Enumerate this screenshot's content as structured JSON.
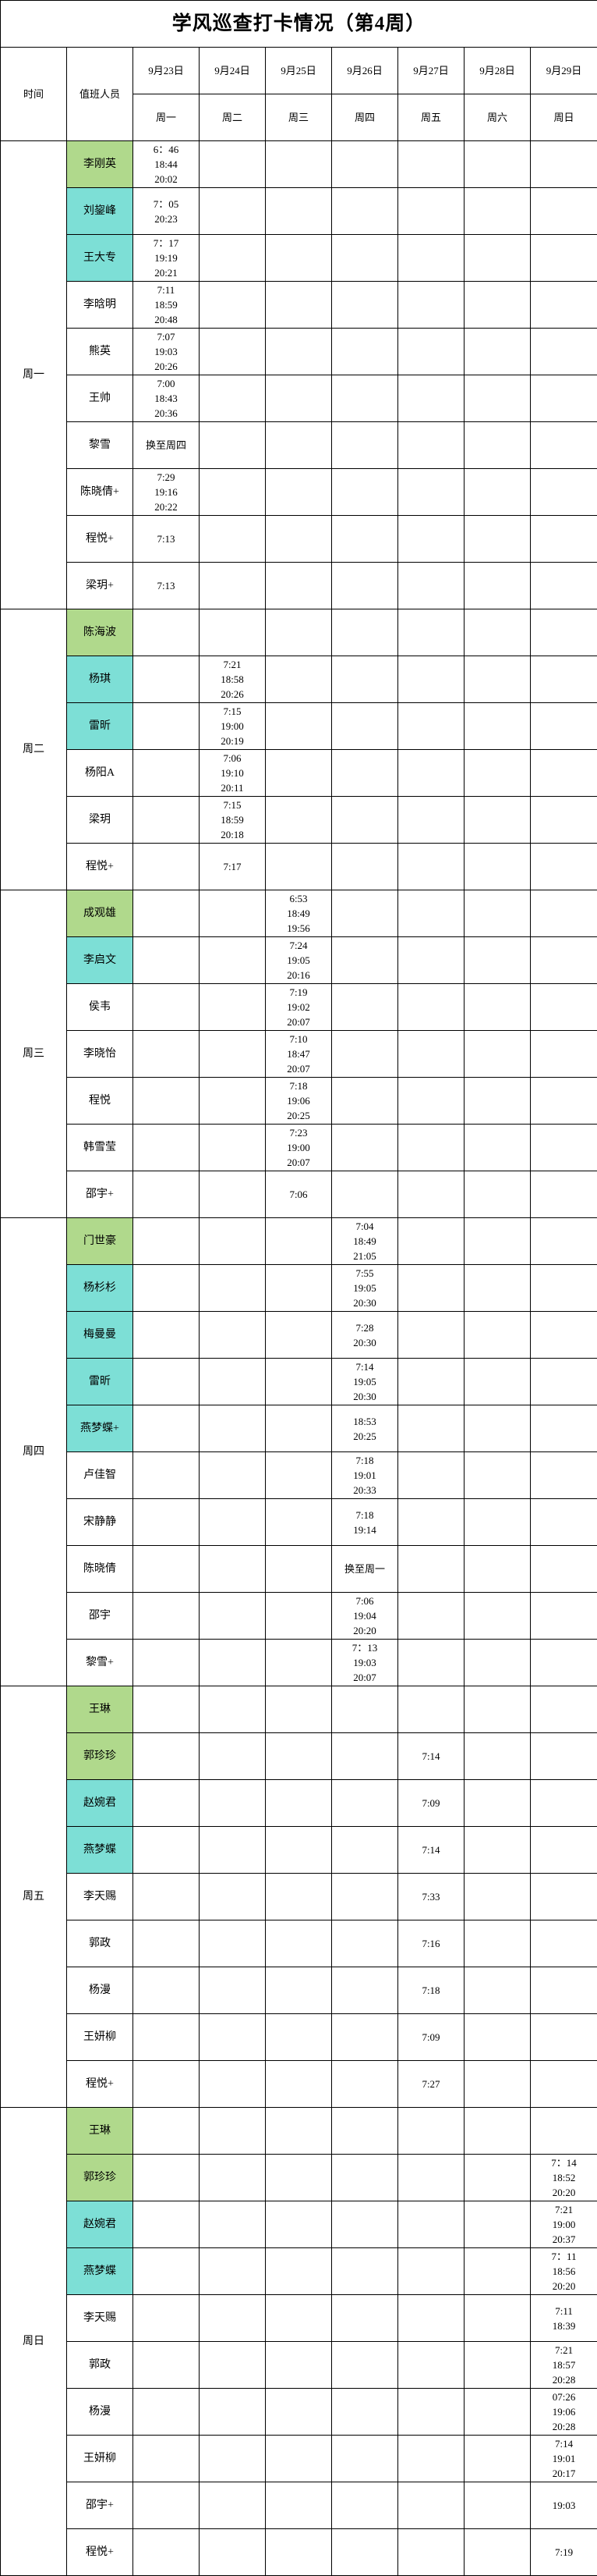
{
  "title": "学风巡查打卡情况（第4周）",
  "header": {
    "time_label": "时间",
    "staff_label": "值班人员",
    "dates": [
      "9月23日",
      "9月24日",
      "9月25日",
      "9月26日",
      "9月27日",
      "9月28日",
      "9月29日"
    ],
    "weekdays": [
      "周一",
      "周二",
      "周三",
      "周四",
      "周五",
      "周六",
      "周日"
    ]
  },
  "colors": {
    "green": "#b0d98c",
    "teal": "#7ddfd6",
    "border": "#000000"
  },
  "sections": [
    {
      "day": "周一",
      "rows": [
        {
          "name": "李刚英",
          "color": "green",
          "times": [
            "6：46\n18:44\n20:02",
            "",
            "",
            "",
            "",
            "",
            ""
          ]
        },
        {
          "name": "刘鋆峰",
          "color": "teal",
          "times": [
            "7：05\n20:23",
            "",
            "",
            "",
            "",
            "",
            ""
          ]
        },
        {
          "name": "王大专",
          "color": "teal",
          "times": [
            "7：17\n19:19\n20:21",
            "",
            "",
            "",
            "",
            "",
            ""
          ]
        },
        {
          "name": "李晗明",
          "color": "",
          "times": [
            "7:11\n18:59\n20:48",
            "",
            "",
            "",
            "",
            "",
            ""
          ]
        },
        {
          "name": "熊英",
          "color": "",
          "times": [
            "7:07\n19:03\n20:26",
            "",
            "",
            "",
            "",
            "",
            ""
          ]
        },
        {
          "name": "王帅",
          "color": "",
          "times": [
            "7:00\n18:43\n20:36",
            "",
            "",
            "",
            "",
            "",
            ""
          ]
        },
        {
          "name": "黎雪",
          "color": "",
          "times": [
            "换至周四",
            "",
            "",
            "",
            "",
            "",
            ""
          ]
        },
        {
          "name": "陈晓倩+",
          "color": "",
          "times": [
            "7:29\n19:16\n20:22",
            "",
            "",
            "",
            "",
            "",
            ""
          ]
        },
        {
          "name": "程悦+",
          "color": "",
          "times": [
            "7:13",
            "",
            "",
            "",
            "",
            "",
            ""
          ]
        },
        {
          "name": "梁玥+",
          "color": "",
          "times": [
            "7:13",
            "",
            "",
            "",
            "",
            "",
            ""
          ]
        }
      ]
    },
    {
      "day": "周二",
      "rows": [
        {
          "name": "陈海波",
          "color": "green",
          "times": [
            "",
            "",
            "",
            "",
            "",
            "",
            ""
          ]
        },
        {
          "name": "杨琪",
          "color": "teal",
          "times": [
            "",
            "7:21\n18:58\n20:26",
            "",
            "",
            "",
            "",
            ""
          ]
        },
        {
          "name": "雷昕",
          "color": "teal",
          "times": [
            "",
            "7:15\n19:00\n20:19",
            "",
            "",
            "",
            "",
            ""
          ]
        },
        {
          "name": "杨阳A",
          "color": "",
          "times": [
            "",
            "7:06\n19:10\n20:11",
            "",
            "",
            "",
            "",
            ""
          ]
        },
        {
          "name": "梁玥",
          "color": "",
          "times": [
            "",
            "7:15\n18:59\n20:18",
            "",
            "",
            "",
            "",
            ""
          ]
        },
        {
          "name": "程悦+",
          "color": "",
          "times": [
            "",
            "7:17",
            "",
            "",
            "",
            "",
            ""
          ]
        }
      ]
    },
    {
      "day": "周三",
      "rows": [
        {
          "name": "成观雄",
          "color": "green",
          "times": [
            "",
            "",
            "6:53\n18:49\n19:56",
            "",
            "",
            "",
            ""
          ]
        },
        {
          "name": "李启文",
          "color": "teal",
          "times": [
            "",
            "",
            "7:24\n19:05\n20:16",
            "",
            "",
            "",
            ""
          ]
        },
        {
          "name": "侯韦",
          "color": "",
          "times": [
            "",
            "",
            "7:19\n19:02\n20:07",
            "",
            "",
            "",
            ""
          ]
        },
        {
          "name": "李晓怡",
          "color": "",
          "times": [
            "",
            "",
            "7:10\n18:47\n20:07",
            "",
            "",
            "",
            ""
          ]
        },
        {
          "name": "程悦",
          "color": "",
          "times": [
            "",
            "",
            "7:18\n19:06\n20:25",
            "",
            "",
            "",
            ""
          ]
        },
        {
          "name": "韩雪莹",
          "color": "",
          "times": [
            "",
            "",
            "7:23\n19:00\n20:07",
            "",
            "",
            "",
            ""
          ]
        },
        {
          "name": "邵宇+",
          "color": "",
          "times": [
            "",
            "",
            "7:06",
            "",
            "",
            "",
            ""
          ]
        }
      ]
    },
    {
      "day": "周四",
      "rows": [
        {
          "name": "门世豪",
          "color": "green",
          "times": [
            "",
            "",
            "",
            "7:04\n18:49\n21:05",
            "",
            "",
            ""
          ]
        },
        {
          "name": "杨杉杉",
          "color": "teal",
          "times": [
            "",
            "",
            "",
            "7:55\n19:05\n20:30",
            "",
            "",
            ""
          ]
        },
        {
          "name": "梅曼曼",
          "color": "teal",
          "times": [
            "",
            "",
            "",
            "7:28\n20:30",
            "",
            "",
            ""
          ]
        },
        {
          "name": "雷昕",
          "color": "teal",
          "times": [
            "",
            "",
            "",
            "7:14\n19:05\n20:30",
            "",
            "",
            ""
          ]
        },
        {
          "name": "燕梦蝶+",
          "color": "teal",
          "times": [
            "",
            "",
            "",
            "18:53\n20:25",
            "",
            "",
            ""
          ]
        },
        {
          "name": "卢佳智",
          "color": "",
          "times": [
            "",
            "",
            "",
            "7:18\n19:01\n20:33",
            "",
            "",
            ""
          ]
        },
        {
          "name": "宋静静",
          "color": "",
          "times": [
            "",
            "",
            "",
            "7:18\n19:14",
            "",
            "",
            ""
          ]
        },
        {
          "name": "陈晓倩",
          "color": "",
          "times": [
            "",
            "",
            "",
            "换至周一",
            "",
            "",
            ""
          ]
        },
        {
          "name": "邵宇",
          "color": "",
          "times": [
            "",
            "",
            "",
            "7:06\n19:04\n20:20",
            "",
            "",
            ""
          ]
        },
        {
          "name": "黎雪+",
          "color": "",
          "times": [
            "",
            "",
            "",
            "7：13\n19:03\n20:07",
            "",
            "",
            ""
          ]
        }
      ]
    },
    {
      "day": "周五",
      "rows": [
        {
          "name": "王琳",
          "color": "green",
          "times": [
            "",
            "",
            "",
            "",
            "",
            "",
            ""
          ]
        },
        {
          "name": "郭珍珍",
          "color": "green",
          "times": [
            "",
            "",
            "",
            "",
            "7:14",
            "",
            ""
          ]
        },
        {
          "name": "赵婉君",
          "color": "teal",
          "times": [
            "",
            "",
            "",
            "",
            "7:09",
            "",
            ""
          ]
        },
        {
          "name": "燕梦蝶",
          "color": "teal",
          "times": [
            "",
            "",
            "",
            "",
            "7:14",
            "",
            ""
          ]
        },
        {
          "name": "李天赐",
          "color": "",
          "times": [
            "",
            "",
            "",
            "",
            "7:33",
            "",
            ""
          ]
        },
        {
          "name": "郭政",
          "color": "",
          "times": [
            "",
            "",
            "",
            "",
            "7:16",
            "",
            ""
          ]
        },
        {
          "name": "杨漫",
          "color": "",
          "times": [
            "",
            "",
            "",
            "",
            "7:18",
            "",
            ""
          ]
        },
        {
          "name": "王妍柳",
          "color": "",
          "times": [
            "",
            "",
            "",
            "",
            "7:09",
            "",
            ""
          ]
        },
        {
          "name": "程悦+",
          "color": "",
          "times": [
            "",
            "",
            "",
            "",
            "7:27",
            "",
            ""
          ]
        }
      ]
    },
    {
      "day": "周日",
      "rows": [
        {
          "name": "王琳",
          "color": "green",
          "times": [
            "",
            "",
            "",
            "",
            "",
            "",
            ""
          ]
        },
        {
          "name": "郭珍珍",
          "color": "green",
          "times": [
            "",
            "",
            "",
            "",
            "",
            "",
            "7：14\n18:52\n20:20"
          ]
        },
        {
          "name": "赵婉君",
          "color": "teal",
          "times": [
            "",
            "",
            "",
            "",
            "",
            "",
            "7:21\n19:00\n20:37"
          ]
        },
        {
          "name": "燕梦蝶",
          "color": "teal",
          "times": [
            "",
            "",
            "",
            "",
            "",
            "",
            "7：11\n18:56\n20:20"
          ]
        },
        {
          "name": "李天赐",
          "color": "",
          "times": [
            "",
            "",
            "",
            "",
            "",
            "",
            "7:11\n18:39"
          ]
        },
        {
          "name": "郭政",
          "color": "",
          "times": [
            "",
            "",
            "",
            "",
            "",
            "",
            "7:21\n18:57\n20:28"
          ]
        },
        {
          "name": "杨漫",
          "color": "",
          "times": [
            "",
            "",
            "",
            "",
            "",
            "",
            "07:26\n19:06\n20:28"
          ]
        },
        {
          "name": "王妍柳",
          "color": "",
          "times": [
            "",
            "",
            "",
            "",
            "",
            "",
            "7:14\n19:01\n20:17"
          ]
        },
        {
          "name": "邵宇+",
          "color": "",
          "times": [
            "",
            "",
            "",
            "",
            "",
            "",
            "19:03"
          ]
        },
        {
          "name": "程悦+",
          "color": "",
          "times": [
            "",
            "",
            "",
            "",
            "",
            "",
            "7:19"
          ]
        }
      ]
    }
  ]
}
